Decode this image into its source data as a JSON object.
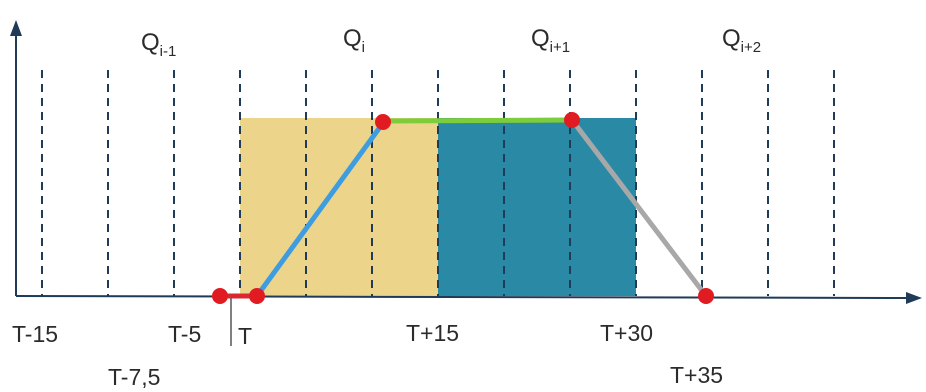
{
  "colors": {
    "axis": "#1f3b57",
    "dash": "#1f3b57",
    "zone_current": "#ecd58a",
    "zone_next": "#2a8aa5",
    "ramp_up": "#3d9de0",
    "plateau": "#7ccc3c",
    "ramp_down": "#a8a8a8",
    "dead_band": "#d9282f",
    "point": "#e11b22"
  },
  "quarter_labels": [
    {
      "base": "Q",
      "sub": "i-1"
    },
    {
      "base": "Q",
      "sub": "i"
    },
    {
      "base": "Q",
      "sub": "i+1"
    },
    {
      "base": "Q",
      "sub": "i+2"
    }
  ],
  "time_labels": [
    "T-15",
    "T-7,5",
    "T-5",
    "T",
    "T+15",
    "T+30",
    "T+35"
  ],
  "profile_points_minutes": [
    -5,
    0,
    10,
    25,
    35
  ],
  "zones_minutes": [
    [
      0,
      15
    ],
    [
      15,
      30
    ]
  ],
  "dashed_lines_minutes": [
    -15,
    -10,
    -5,
    0,
    5,
    10,
    15,
    20,
    25,
    30,
    35,
    40,
    45
  ]
}
